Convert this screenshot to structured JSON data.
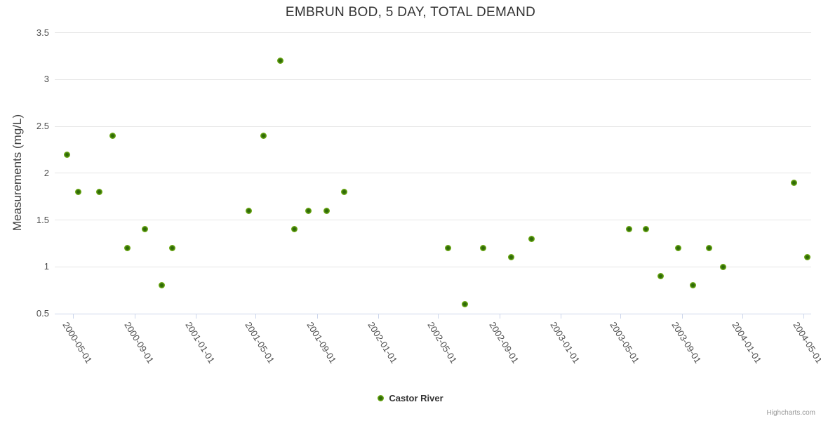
{
  "title": "EMBRUN BOD, 5 DAY, TOTAL DEMAND",
  "credit": "Highcharts.com",
  "legend": {
    "label": "Castor River"
  },
  "colors": {
    "marker_outer": "#86c11c",
    "marker_inner": "#2f6a08",
    "gridline": "#e6e6e6",
    "axis_line": "#ccd6eb",
    "title_text": "#333333",
    "tick_label_text": "#4d4d4d",
    "credit_text": "#999999"
  },
  "chart_data": {
    "type": "scatter",
    "title": "EMBRUN BOD, 5 DAY, TOTAL DEMAND",
    "xlabel": "",
    "ylabel": "Measurements (mg/L)",
    "ylim": [
      0.5,
      3.5
    ],
    "y_ticks": [
      "0.5",
      "1",
      "1.5",
      "2",
      "2.5",
      "3",
      "3.5"
    ],
    "x_tick_labels": [
      "2000-05-01",
      "2000-09-01",
      "2001-01-01",
      "2001-05-01",
      "2001-09-01",
      "2002-01-01",
      "2002-05-01",
      "2002-09-01",
      "2003-01-01",
      "2003-05-01",
      "2003-09-01",
      "2004-01-01",
      "2004-05-01"
    ],
    "x_range": [
      "2000-03-25",
      "2004-05-17"
    ],
    "grid": "horizontal-only",
    "legend_position": "bottom-center",
    "series": [
      {
        "name": "Castor River",
        "color": "#6faf14",
        "points": [
          {
            "date": "2000-04-19",
            "value": 2.2
          },
          {
            "date": "2000-05-11",
            "value": 1.8
          },
          {
            "date": "2000-06-22",
            "value": 1.8
          },
          {
            "date": "2000-07-19",
            "value": 2.4
          },
          {
            "date": "2000-08-17",
            "value": 1.2
          },
          {
            "date": "2000-09-21",
            "value": 1.4
          },
          {
            "date": "2000-10-25",
            "value": 0.8
          },
          {
            "date": "2000-11-15",
            "value": 1.2
          },
          {
            "date": "2001-04-18",
            "value": 1.6
          },
          {
            "date": "2001-05-17",
            "value": 2.4
          },
          {
            "date": "2001-06-20",
            "value": 3.2
          },
          {
            "date": "2001-07-18",
            "value": 1.4
          },
          {
            "date": "2001-08-15",
            "value": 1.6
          },
          {
            "date": "2001-09-20",
            "value": 1.6
          },
          {
            "date": "2001-10-25",
            "value": 1.8
          },
          {
            "date": "2002-05-21",
            "value": 1.2
          },
          {
            "date": "2002-06-24",
            "value": 0.6
          },
          {
            "date": "2002-07-30",
            "value": 1.2
          },
          {
            "date": "2002-09-24",
            "value": 1.1
          },
          {
            "date": "2002-11-04",
            "value": 1.3
          },
          {
            "date": "2003-05-18",
            "value": 1.4
          },
          {
            "date": "2003-06-21",
            "value": 1.4
          },
          {
            "date": "2003-07-21",
            "value": 0.9
          },
          {
            "date": "2003-08-25",
            "value": 1.2
          },
          {
            "date": "2003-09-23",
            "value": 0.8
          },
          {
            "date": "2003-10-26",
            "value": 1.2
          },
          {
            "date": "2003-11-23",
            "value": 1.0
          },
          {
            "date": "2004-04-13",
            "value": 1.9
          },
          {
            "date": "2004-05-09",
            "value": 1.1
          }
        ]
      }
    ]
  }
}
